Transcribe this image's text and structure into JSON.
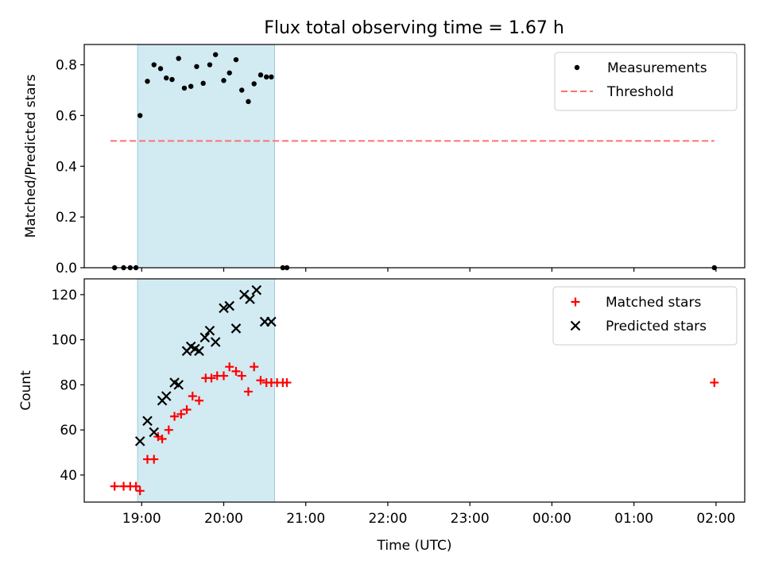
{
  "title": "Flux total observing time = 1.67 h",
  "colors": {
    "shade": "#add8e6",
    "threshold": "#ff7070",
    "matched": "#ff0000",
    "predicted": "#000000",
    "measurement": "#000000"
  },
  "chart_data": [
    {
      "type": "scatter",
      "title": "Flux total observing time = 1.67 h",
      "xlabel": "",
      "ylabel": "Matched/Predicted stars",
      "x_unit": "hours since 19:00 UTC",
      "xlim": [
        -0.7,
        7.35
      ],
      "ylim": [
        0,
        0.88
      ],
      "yticks": [
        0.0,
        0.2,
        0.4,
        0.6,
        0.8
      ],
      "ytick_labels": [
        "0.0",
        "0.2",
        "0.4",
        "0.6",
        "0.8"
      ],
      "shaded_span": [
        -0.05,
        1.62
      ],
      "legend": "top-right",
      "grid": false,
      "threshold": {
        "name": "Threshold",
        "value": 0.5,
        "x_range": [
          -0.38,
          6.98
        ],
        "style": "dashed"
      },
      "series": [
        {
          "name": "Measurements",
          "marker": "dot",
          "x": [
            -0.33,
            -0.22,
            -0.14,
            -0.07,
            -0.02,
            0.07,
            0.15,
            0.23,
            0.3,
            0.37,
            0.45,
            0.52,
            0.6,
            0.67,
            0.75,
            0.83,
            0.9,
            1.0,
            1.07,
            1.15,
            1.22,
            1.3,
            1.37,
            1.45,
            1.52,
            1.58,
            1.72,
            1.77,
            6.98
          ],
          "y": [
            0.0,
            0.0,
            0.0,
            0.0,
            0.6,
            0.735,
            0.8,
            0.785,
            0.748,
            0.742,
            0.825,
            0.708,
            0.715,
            0.793,
            0.727,
            0.8,
            0.84,
            0.738,
            0.768,
            0.82,
            0.7,
            0.655,
            0.725,
            0.76,
            0.752,
            0.752,
            0.0,
            0.0,
            0.0
          ]
        }
      ]
    },
    {
      "type": "scatter",
      "xlabel": "Time (UTC)",
      "ylabel": "Count",
      "x_unit": "hours since 19:00 UTC",
      "xlim": [
        -0.7,
        7.35
      ],
      "ylim": [
        28,
        127
      ],
      "yticks": [
        40,
        60,
        80,
        100,
        120
      ],
      "xtick_values": [
        0,
        1,
        2,
        3,
        4,
        5,
        6,
        7
      ],
      "xtick_labels": [
        "19:00",
        "20:00",
        "21:00",
        "22:00",
        "23:00",
        "00:00",
        "01:00",
        "02:00"
      ],
      "shaded_span": [
        -0.05,
        1.62
      ],
      "legend": "top-right",
      "grid": false,
      "series": [
        {
          "name": "Matched stars",
          "marker": "plus",
          "x": [
            -0.33,
            -0.22,
            -0.14,
            -0.07,
            -0.02,
            0.07,
            0.15,
            0.2,
            0.25,
            0.33,
            0.4,
            0.48,
            0.55,
            0.62,
            0.7,
            0.78,
            0.85,
            0.92,
            1.0,
            1.07,
            1.15,
            1.22,
            1.3,
            1.37,
            1.45,
            1.52,
            1.58,
            1.65,
            1.72,
            1.77,
            6.98
          ],
          "y": [
            35,
            35,
            35,
            35,
            33,
            47,
            47,
            57,
            56,
            60,
            66,
            67,
            69,
            75,
            73,
            83,
            83,
            84,
            84,
            88,
            86,
            84,
            77,
            88,
            82,
            81,
            81,
            81,
            81,
            81,
            81
          ]
        },
        {
          "name": "Predicted stars",
          "marker": "x",
          "x": [
            -0.02,
            0.07,
            0.15,
            0.25,
            0.3,
            0.4,
            0.45,
            0.55,
            0.6,
            0.65,
            0.7,
            0.77,
            0.83,
            0.9,
            1.0,
            1.07,
            1.15,
            1.25,
            1.32,
            1.4,
            1.5,
            1.58
          ],
          "y": [
            55,
            64,
            59,
            73,
            75,
            81,
            80,
            95,
            97,
            96,
            95,
            101,
            104,
            99,
            114,
            115,
            105,
            120,
            118,
            122,
            108,
            108
          ]
        }
      ]
    }
  ]
}
